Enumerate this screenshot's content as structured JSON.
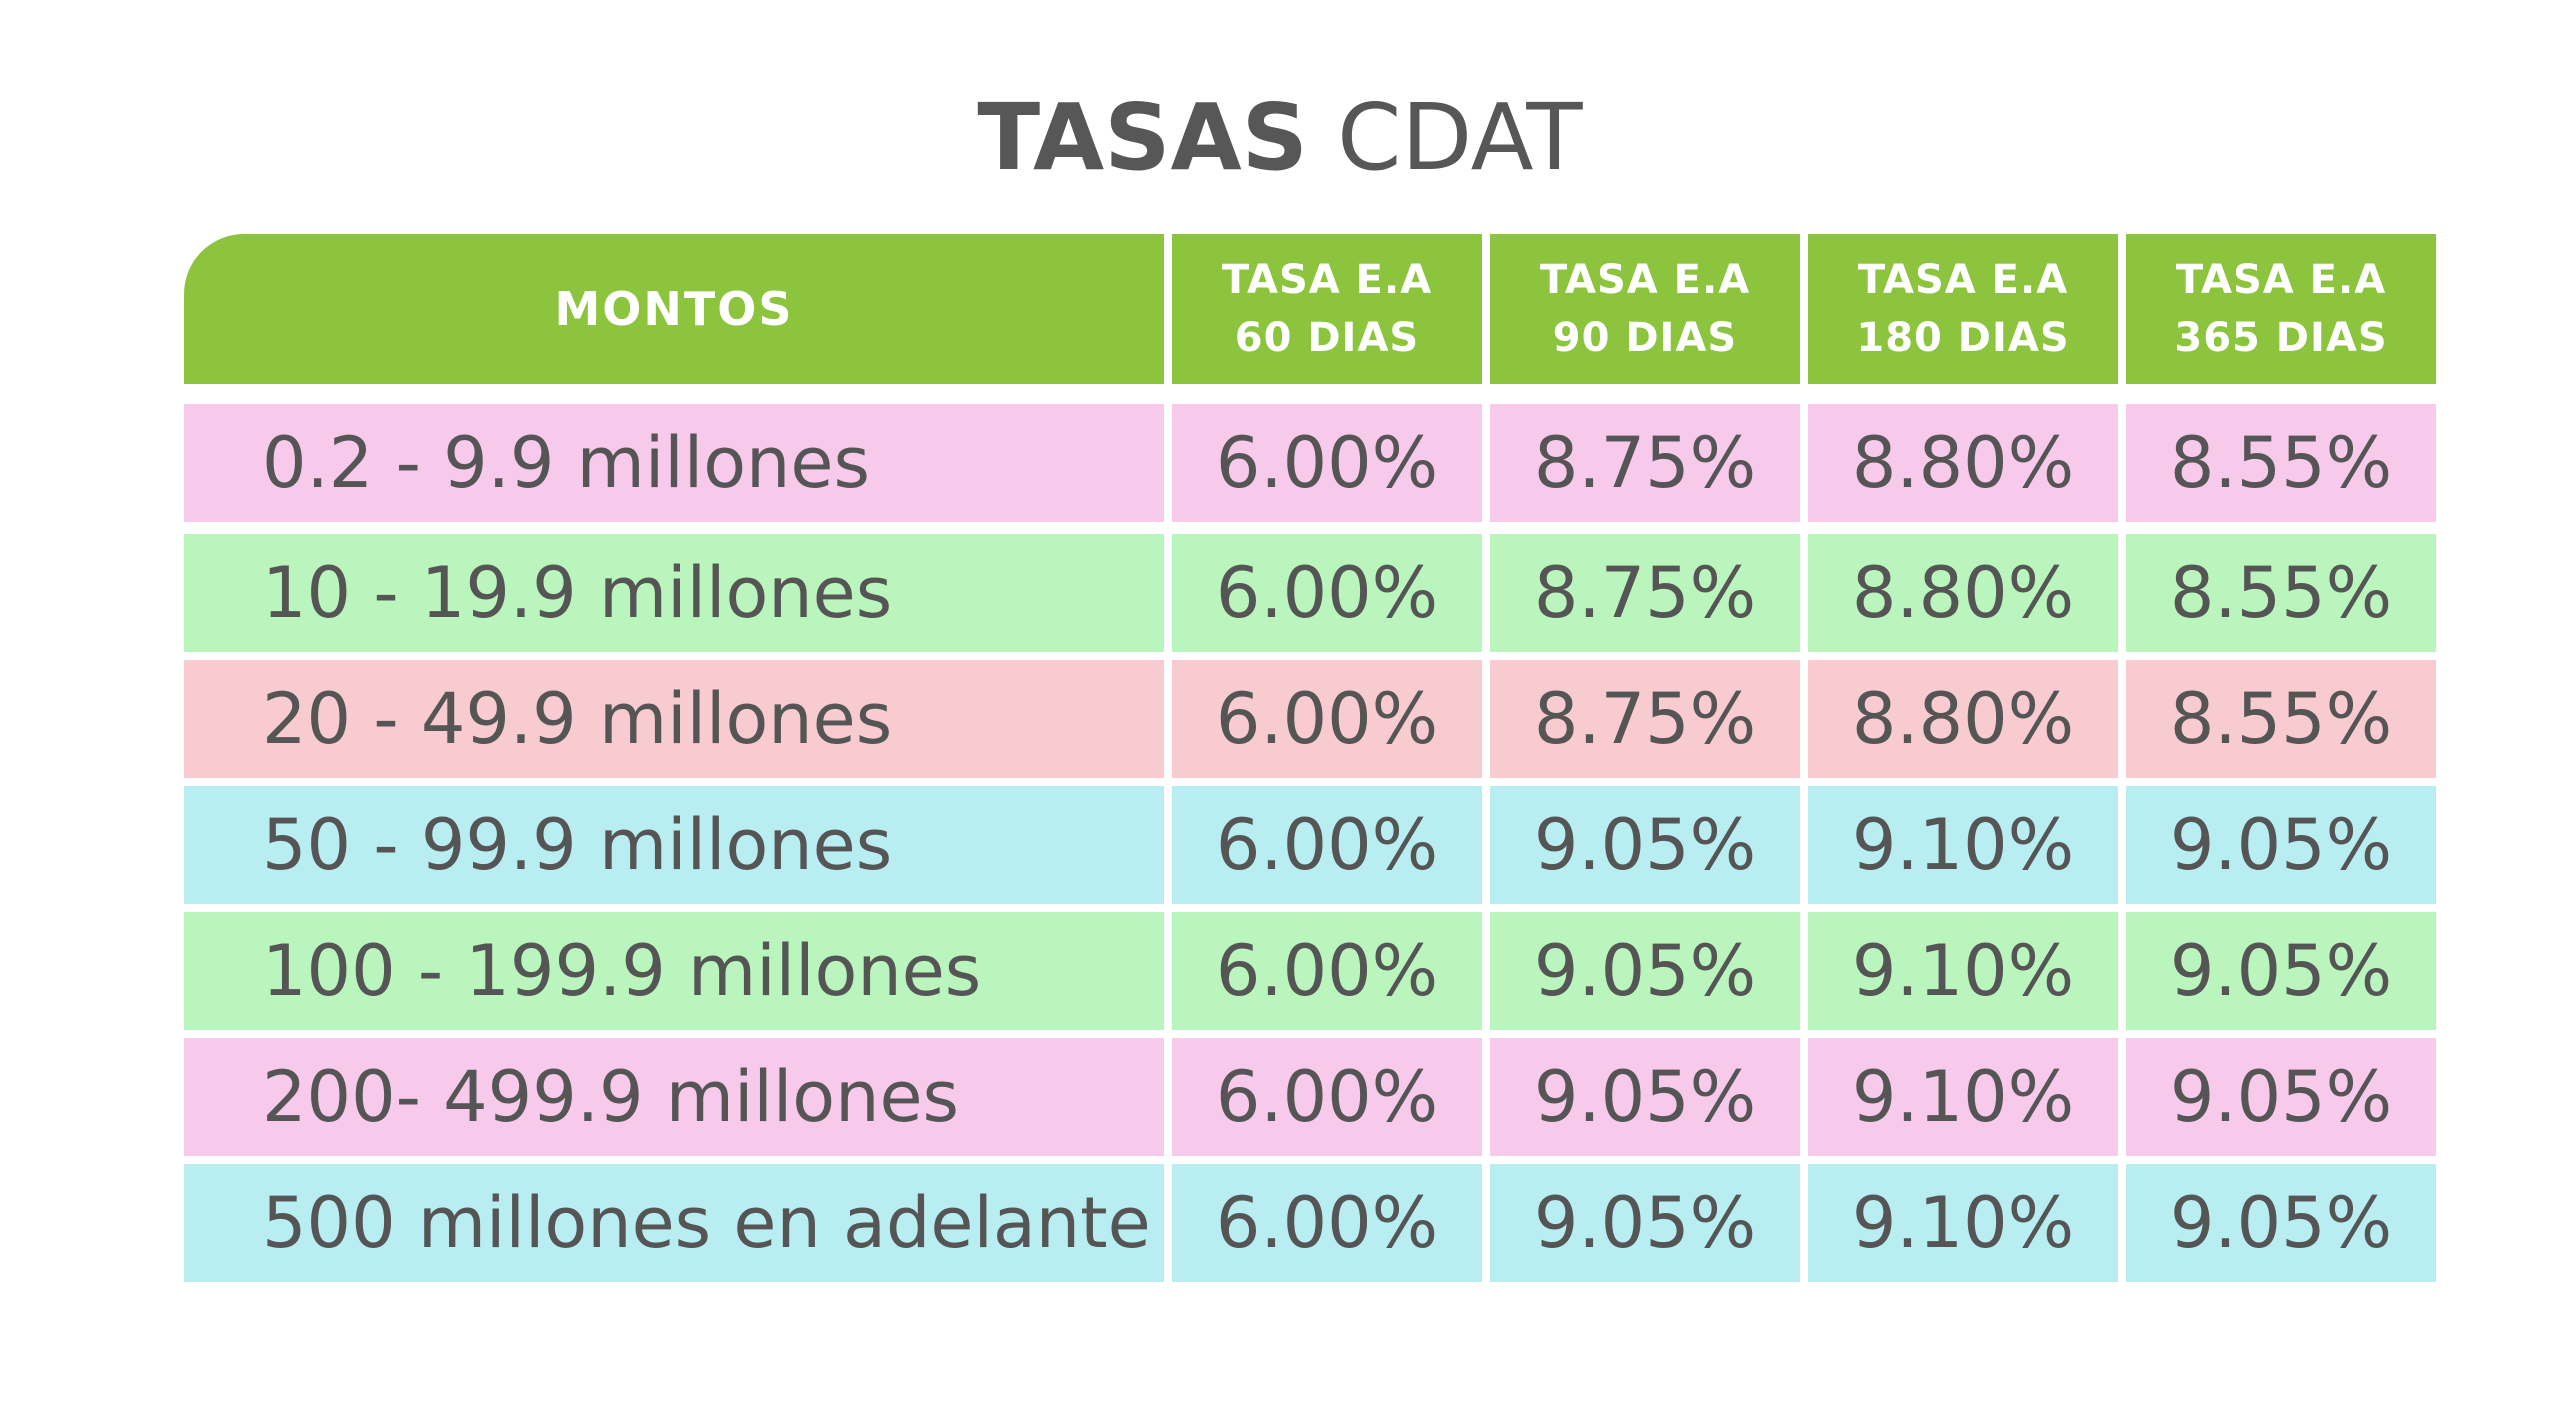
{
  "title": {
    "bold": "TASAS",
    "light": "CDAT"
  },
  "headers": {
    "montos": "MONTOS",
    "cols": [
      {
        "line1": "TASA E.A",
        "line2": "60 DIAS"
      },
      {
        "line1": "TASA E.A",
        "line2": "90 DIAS"
      },
      {
        "line1": "TASA E.A",
        "line2": "180 DIAS"
      },
      {
        "line1": "TASA E.A",
        "line2": "365 DIAS"
      }
    ]
  },
  "colors": {
    "header": "#8cc43e",
    "pink": "#f7c9ea",
    "green": "#baf5bd",
    "salmon": "#f7cbd0",
    "cyan": "#b8eef2"
  },
  "rows": [
    {
      "amount": "0.2 - 9.9 millones",
      "rates": [
        "6.00%",
        "8.75%",
        "8.80%",
        "8.55%"
      ],
      "color": "#f7c9ea"
    },
    {
      "amount": "10 - 19.9 millones",
      "rates": [
        "6.00%",
        "8.75%",
        "8.80%",
        "8.55%"
      ],
      "color": "#baf5bd"
    },
    {
      "amount": "20 - 49.9 millones",
      "rates": [
        "6.00%",
        "8.75%",
        "8.80%",
        "8.55%"
      ],
      "color": "#f7cbd0"
    },
    {
      "amount": "50 - 99.9 millones",
      "rates": [
        "6.00%",
        "9.05%",
        "9.10%",
        "9.05%"
      ],
      "color": "#b8eef2"
    },
    {
      "amount": "100 - 199.9 millones",
      "rates": [
        "6.00%",
        "9.05%",
        "9.10%",
        "9.05%"
      ],
      "color": "#baf5bd"
    },
    {
      "amount": "200- 499.9 millones",
      "rates": [
        "6.00%",
        "9.05%",
        "9.10%",
        "9.05%"
      ],
      "color": "#f7c9ea"
    },
    {
      "amount": "500 millones en adelante",
      "rates": [
        "6.00%",
        "9.05%",
        "9.10%",
        "9.05%"
      ],
      "color": "#b8eef2"
    }
  ]
}
